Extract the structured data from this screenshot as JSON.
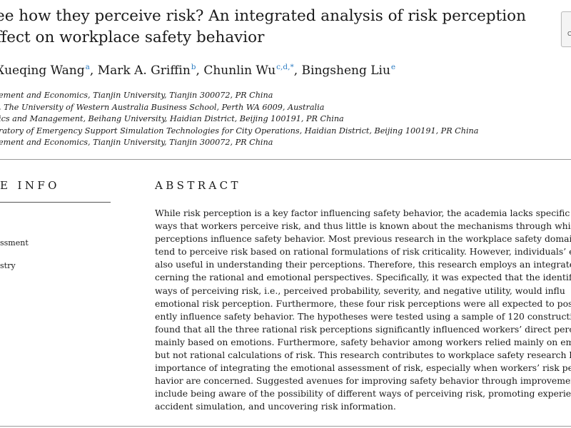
{
  "title": {
    "line1": "ee how they perceive risk? An integrated analysis of risk perception",
    "line2": "ffect on workplace safety behavior"
  },
  "crossmark_label": "Ch",
  "authors": [
    {
      "name": "Xueqing Wang",
      "sup": "a",
      "sep": ", "
    },
    {
      "name": "Mark A. Griffin",
      "sup": "b",
      "sep": ", "
    },
    {
      "name": "Chunlin Wu",
      "sup": "c,d,*",
      "sep": ", "
    },
    {
      "name": "Bingsheng Liu",
      "sup": "e",
      "sep": ""
    }
  ],
  "affiliations": [
    "ement and Economics, Tianjin University, Tianjin 300072, PR China",
    ", The University of Western Australia Business School, Perth WA 6009, Australia",
    "ics and Management, Beihang University, Haidian District, Beijing 100191, PR China",
    "ratory of Emergency Support Simulation Technologies for City Operations, Haidian District, Beijing 100191, PR China",
    "ement and Economics, Tianjin University, Tianjin 300072, PR China"
  ],
  "article_info": {
    "heading": "E INFO",
    "keywords": [
      "ssment",
      "stry"
    ]
  },
  "abstract": {
    "heading": "ABSTRACT",
    "lines": [
      "While risk perception is a key factor influencing safety behavior, the academia lacks specific a",
      "ways that workers perceive risk, and thus little is known about the mechanisms through whic",
      "perceptions influence safety behavior. Most previous research in the workplace safety domain arg",
      "tend to perceive risk based on rational formulations of risk criticality. However, individuals’ e",
      "also useful in understanding their perceptions. Therefore, this research employs an integrate",
      "cerning the rational and emotional perspectives. Specifically, it was expected that the identifie",
      "ways of perceiving risk, i.e., perceived probability, severity, and negative utility, would influ",
      "emotional risk perception. Furthermore, these four risk perceptions were all expected to positi",
      "ently influence safety behavior. The hypotheses were tested using a sample of 120 construction",
      "found that all the three rational risk perceptions significantly influenced workers’ direct perceptio",
      "mainly based on emotions. Furthermore, safety behavior among workers relied mainly on emoti",
      "but not rational calculations of risk. This research contributes to workplace safety research by h",
      "importance of integrating the emotional assessment of risk, especially when workers’ risk perc",
      "havior are concerned. Suggested avenues for improving safety behavior through improvement in",
      "include being aware of the possibility of different ways of perceiving risk, promoting experien",
      "accident simulation, and uncovering risk information."
    ]
  }
}
